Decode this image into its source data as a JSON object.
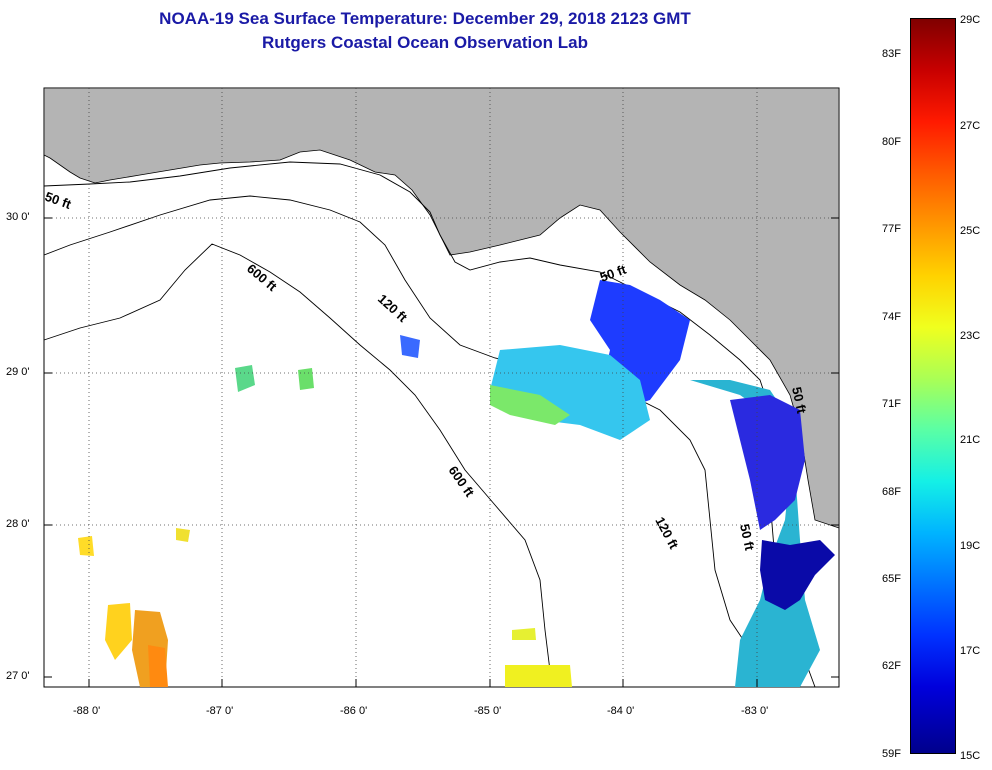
{
  "title": {
    "line1": "NOAA-19 Sea Surface Temperature:  December 29, 2018 2123 GMT",
    "line2": "Rutgers Coastal Ocean Observation Lab"
  },
  "map": {
    "lat_ticks": [
      "30 0'",
      "29 0'",
      "28 0'",
      "27 0'"
    ],
    "lon_ticks": [
      "-88 0'",
      "-87 0'",
      "-86 0'",
      "-85 0'",
      "-84 0'",
      "-83 0'"
    ],
    "contour_labels": [
      "50 ft",
      "600 ft",
      "120 ft",
      "50 ft",
      "600 ft",
      "120 ft",
      "50 ft",
      "50 ft"
    ],
    "land_color": "#b4b4b4"
  },
  "colorbar": {
    "celsius": [
      "29C",
      "27C",
      "25C",
      "23C",
      "21C",
      "19C",
      "17C",
      "15C"
    ],
    "fahrenheit": [
      "83F",
      "80F",
      "77F",
      "74F",
      "71F",
      "68F",
      "65F",
      "62F",
      "59F"
    ]
  }
}
